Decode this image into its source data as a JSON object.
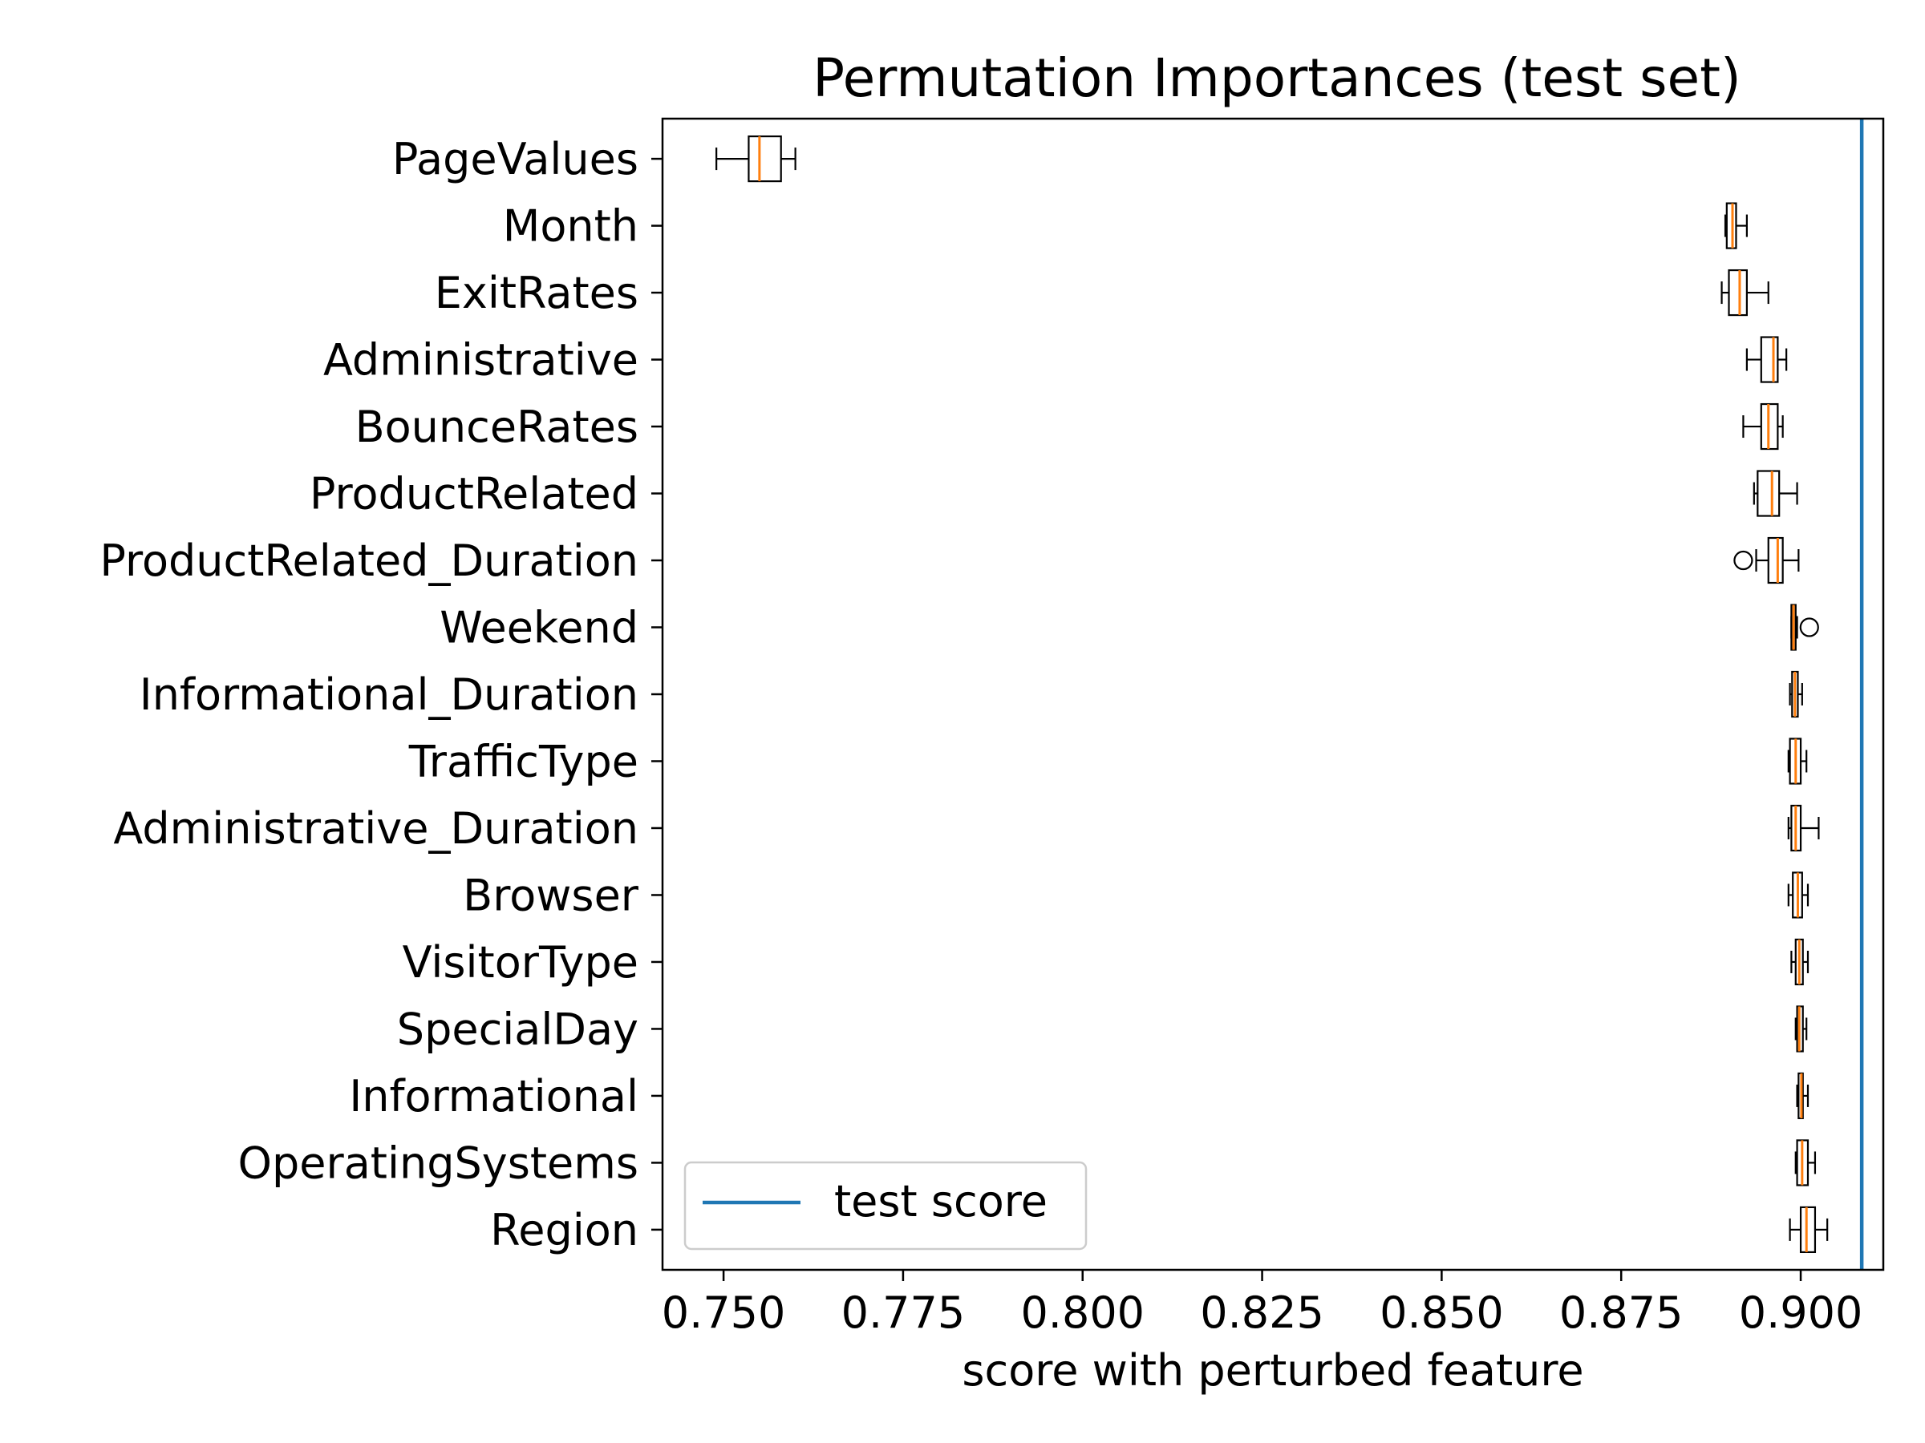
{
  "chart_data": {
    "type": "boxplot",
    "orientation": "horizontal",
    "title": "Permutation Importances (test set)",
    "xlabel": "score with perturbed feature",
    "ylabel": "",
    "xlim": [
      0.7415,
      0.9115
    ],
    "xticks": [
      "0.750",
      "0.775",
      "0.800",
      "0.825",
      "0.850",
      "0.875",
      "0.900"
    ],
    "grid": false,
    "legend": {
      "placement": "lower-left",
      "entries": [
        "test score"
      ]
    },
    "reference_line": {
      "label": "test score",
      "value": 0.9085
    },
    "colors": {
      "box": "#000000",
      "median": "#ff7f0e",
      "reference_line": "#1f77b4"
    },
    "features": [
      {
        "name": "PageValues",
        "whisker_low": 0.749,
        "q1": 0.7535,
        "median": 0.755,
        "q3": 0.758,
        "whisker_high": 0.76,
        "outliers": []
      },
      {
        "name": "Month",
        "whisker_low": 0.8895,
        "q1": 0.8897,
        "median": 0.8905,
        "q3": 0.891,
        "whisker_high": 0.8925,
        "outliers": []
      },
      {
        "name": "ExitRates",
        "whisker_low": 0.889,
        "q1": 0.89,
        "median": 0.8915,
        "q3": 0.8925,
        "whisker_high": 0.8955,
        "outliers": []
      },
      {
        "name": "Administrative",
        "whisker_low": 0.8925,
        "q1": 0.8945,
        "median": 0.8962,
        "q3": 0.8968,
        "whisker_high": 0.898,
        "outliers": []
      },
      {
        "name": "BounceRates",
        "whisker_low": 0.892,
        "q1": 0.8945,
        "median": 0.8955,
        "q3": 0.8968,
        "whisker_high": 0.8975,
        "outliers": []
      },
      {
        "name": "ProductRelated",
        "whisker_low": 0.8935,
        "q1": 0.894,
        "median": 0.896,
        "q3": 0.897,
        "whisker_high": 0.8995,
        "outliers": []
      },
      {
        "name": "ProductRelated_Duration",
        "whisker_low": 0.8938,
        "q1": 0.8955,
        "median": 0.8968,
        "q3": 0.8975,
        "whisker_high": 0.8997,
        "outliers": [
          0.892
        ]
      },
      {
        "name": "Weekend",
        "whisker_low": 0.8987,
        "q1": 0.8987,
        "median": 0.899,
        "q3": 0.8993,
        "whisker_high": 0.8995,
        "outliers": [
          0.9012
        ]
      },
      {
        "name": "Informational_Duration",
        "whisker_low": 0.8985,
        "q1": 0.8988,
        "median": 0.8992,
        "q3": 0.8996,
        "whisker_high": 0.9002,
        "outliers": []
      },
      {
        "name": "TrafficType",
        "whisker_low": 0.8983,
        "q1": 0.8985,
        "median": 0.8993,
        "q3": 0.9,
        "whisker_high": 0.9008,
        "outliers": []
      },
      {
        "name": "Administrative_Duration",
        "whisker_low": 0.8983,
        "q1": 0.8987,
        "median": 0.8993,
        "q3": 0.9,
        "whisker_high": 0.9025,
        "outliers": []
      },
      {
        "name": "Browser",
        "whisker_low": 0.8983,
        "q1": 0.8989,
        "median": 0.8996,
        "q3": 0.9002,
        "whisker_high": 0.901,
        "outliers": []
      },
      {
        "name": "VisitorType",
        "whisker_low": 0.8987,
        "q1": 0.8993,
        "median": 0.8998,
        "q3": 0.9003,
        "whisker_high": 0.901,
        "outliers": []
      },
      {
        "name": "SpecialDay",
        "whisker_low": 0.8993,
        "q1": 0.8995,
        "median": 0.8998,
        "q3": 0.9003,
        "whisker_high": 0.9008,
        "outliers": []
      },
      {
        "name": "Informational",
        "whisker_low": 0.8995,
        "q1": 0.8997,
        "median": 0.9001,
        "q3": 0.9003,
        "whisker_high": 0.901,
        "outliers": []
      },
      {
        "name": "OperatingSystems",
        "whisker_low": 0.8993,
        "q1": 0.8995,
        "median": 0.9002,
        "q3": 0.901,
        "whisker_high": 0.902,
        "outliers": []
      },
      {
        "name": "Region",
        "whisker_low": 0.8985,
        "q1": 0.9,
        "median": 0.9008,
        "q3": 0.902,
        "whisker_high": 0.9037,
        "outliers": []
      }
    ]
  }
}
